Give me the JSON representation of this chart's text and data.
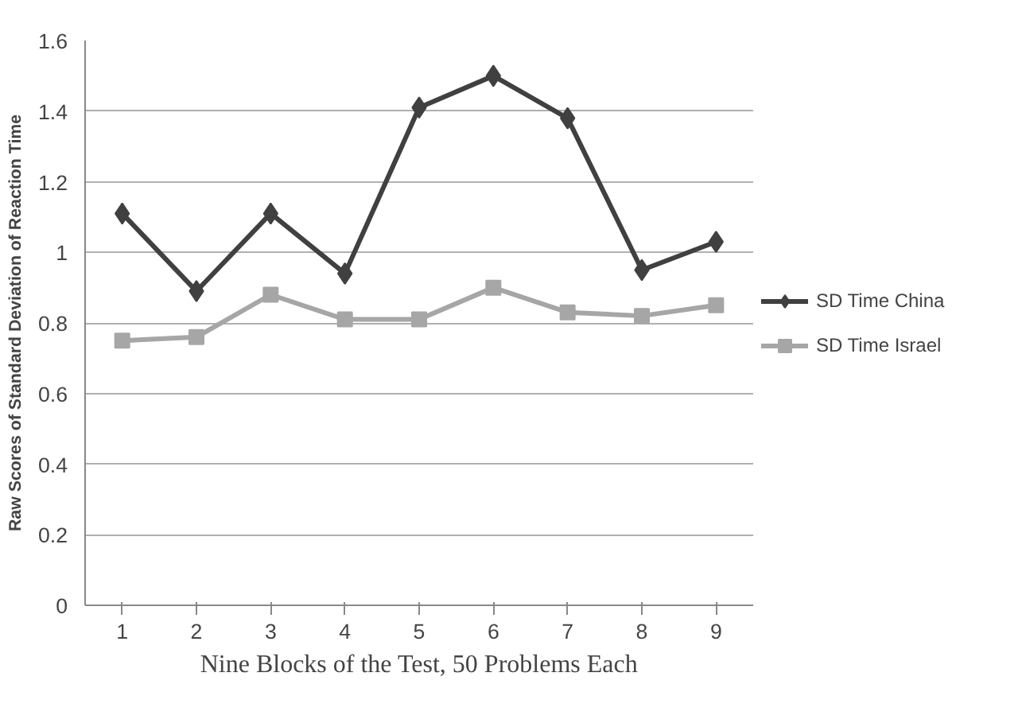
{
  "chart_data": {
    "type": "line",
    "xlabel": "Nine Blocks of the Test, 50 Problems Each",
    "ylabel": "Raw Scores of Standard Deviation of Reaction Time",
    "categories": [
      "1",
      "2",
      "3",
      "4",
      "5",
      "6",
      "7",
      "8",
      "9"
    ],
    "ylim": [
      0,
      1.6
    ],
    "yticks": [
      0,
      0.2,
      0.4,
      0.6,
      0.8,
      1,
      1.2,
      1.4,
      1.6
    ],
    "grid": "y",
    "legend": "right",
    "line_style": "solid",
    "series": [
      {
        "name": "SD Time China",
        "color": "#404040",
        "marker": "diamond",
        "values": [
          1.11,
          0.89,
          1.11,
          0.94,
          1.41,
          1.5,
          1.38,
          0.95,
          1.03
        ]
      },
      {
        "name": "SD Time Israel",
        "color": "#a6a6a6",
        "marker": "square",
        "values": [
          0.75,
          0.76,
          0.88,
          0.81,
          0.81,
          0.9,
          0.83,
          0.82,
          0.85
        ]
      }
    ]
  }
}
